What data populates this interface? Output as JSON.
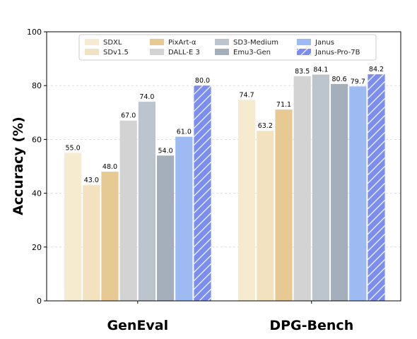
{
  "chart_data": {
    "type": "bar",
    "title": "",
    "xlabel": "",
    "ylabel": "Accuracy (%)",
    "ylim": [
      0,
      100
    ],
    "yticks": [
      0,
      20,
      40,
      60,
      80,
      100
    ],
    "grid": true,
    "legend_position": "top-center",
    "categories": [
      "GenEval",
      "DPG-Bench"
    ],
    "series": [
      {
        "name": "SDXL",
        "values": [
          55.0,
          74.7
        ],
        "labels": [
          "55.0",
          "74.7"
        ],
        "color": "#f7ebcf",
        "hatch": false
      },
      {
        "name": "SDv1.5",
        "values": [
          43.0,
          63.2
        ],
        "labels": [
          "43.0",
          "63.2"
        ],
        "color": "#f3e2bf",
        "hatch": false
      },
      {
        "name": "PixArt-α",
        "values": [
          48.0,
          71.1
        ],
        "labels": [
          "48.0",
          "71.1"
        ],
        "color": "#e6c993",
        "hatch": false
      },
      {
        "name": "DALL-E 3",
        "values": [
          67.0,
          83.5
        ],
        "labels": [
          "67.0",
          "83.5"
        ],
        "color": "#d3d3d3",
        "hatch": false
      },
      {
        "name": "SD3-Medium",
        "values": [
          74.0,
          84.1
        ],
        "labels": [
          "74.0",
          "84.1"
        ],
        "color": "#bcc4cd",
        "hatch": false
      },
      {
        "name": "Emu3-Gen",
        "values": [
          54.0,
          80.6
        ],
        "labels": [
          "54.0",
          "80.6"
        ],
        "color": "#a4afbb",
        "hatch": false
      },
      {
        "name": "Janus",
        "values": [
          61.0,
          79.7
        ],
        "labels": [
          "61.0",
          "79.7"
        ],
        "color": "#9dbaf3",
        "hatch": false
      },
      {
        "name": "Janus-Pro-7B",
        "values": [
          80.0,
          84.2
        ],
        "labels": [
          "80.0",
          "84.2"
        ],
        "color": "#7b8ef0",
        "hatch": true
      }
    ]
  }
}
